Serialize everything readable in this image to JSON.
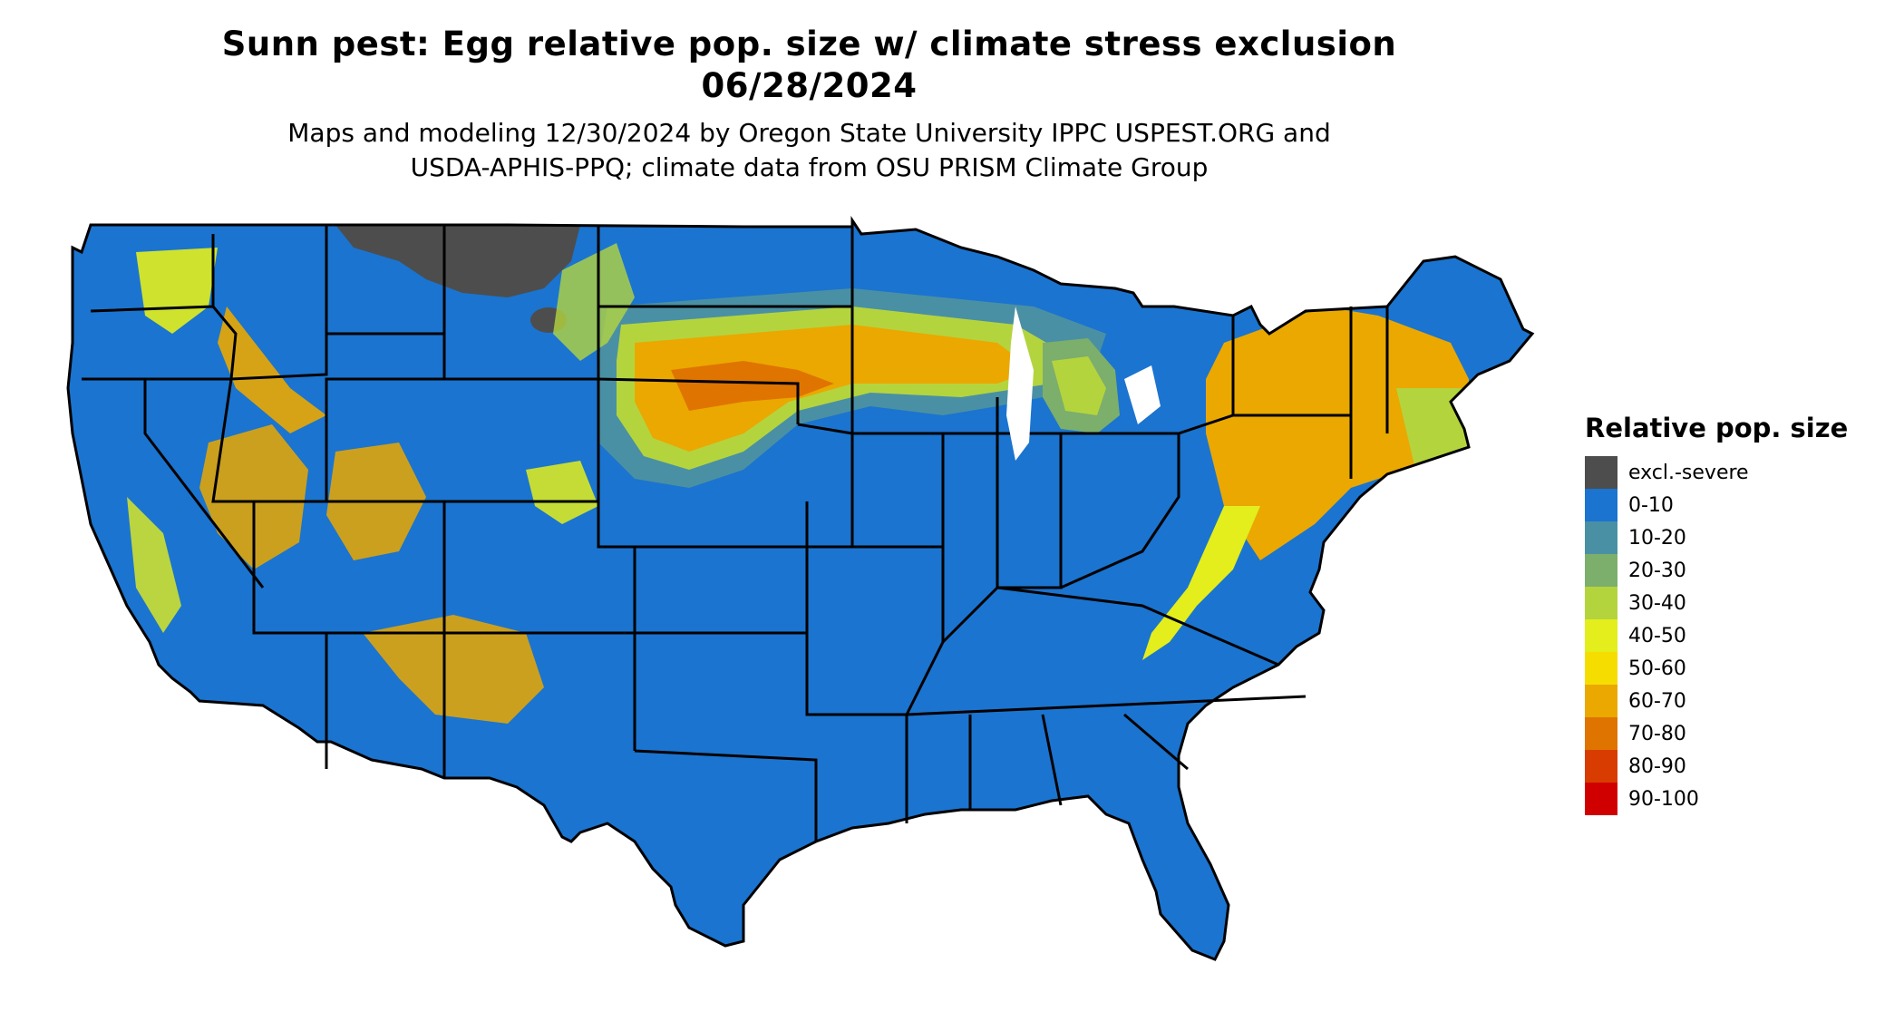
{
  "title": {
    "line1": "Sunn pest: Egg relative pop. size w/ climate stress exclusion",
    "line2": "06/28/2024"
  },
  "subtitle": {
    "line1": "Maps and modeling 12/30/2024 by Oregon State University IPPC USPEST.ORG and",
    "line2": "USDA-APHIS-PPQ; climate data from OSU PRISM Climate Group"
  },
  "legend": {
    "title": "Relative pop. size",
    "items": [
      {
        "label": "excl.-severe",
        "color": "#4d4d4d"
      },
      {
        "label": "0-10",
        "color": "#1b74cf"
      },
      {
        "label": "10-20",
        "color": "#4a90a4"
      },
      {
        "label": "20-30",
        "color": "#7cae6c"
      },
      {
        "label": "30-40",
        "color": "#b4d43e"
      },
      {
        "label": "40-50",
        "color": "#e3ee1c"
      },
      {
        "label": "50-60",
        "color": "#f5dd00"
      },
      {
        "label": "60-70",
        "color": "#eaa800"
      },
      {
        "label": "70-80",
        "color": "#e07400"
      },
      {
        "label": "80-90",
        "color": "#d83c00"
      },
      {
        "label": "90-100",
        "color": "#d00000"
      }
    ]
  },
  "map": {
    "region": "contiguous-united-states",
    "base_color": "#1b74cf",
    "border_color": "#000000"
  }
}
